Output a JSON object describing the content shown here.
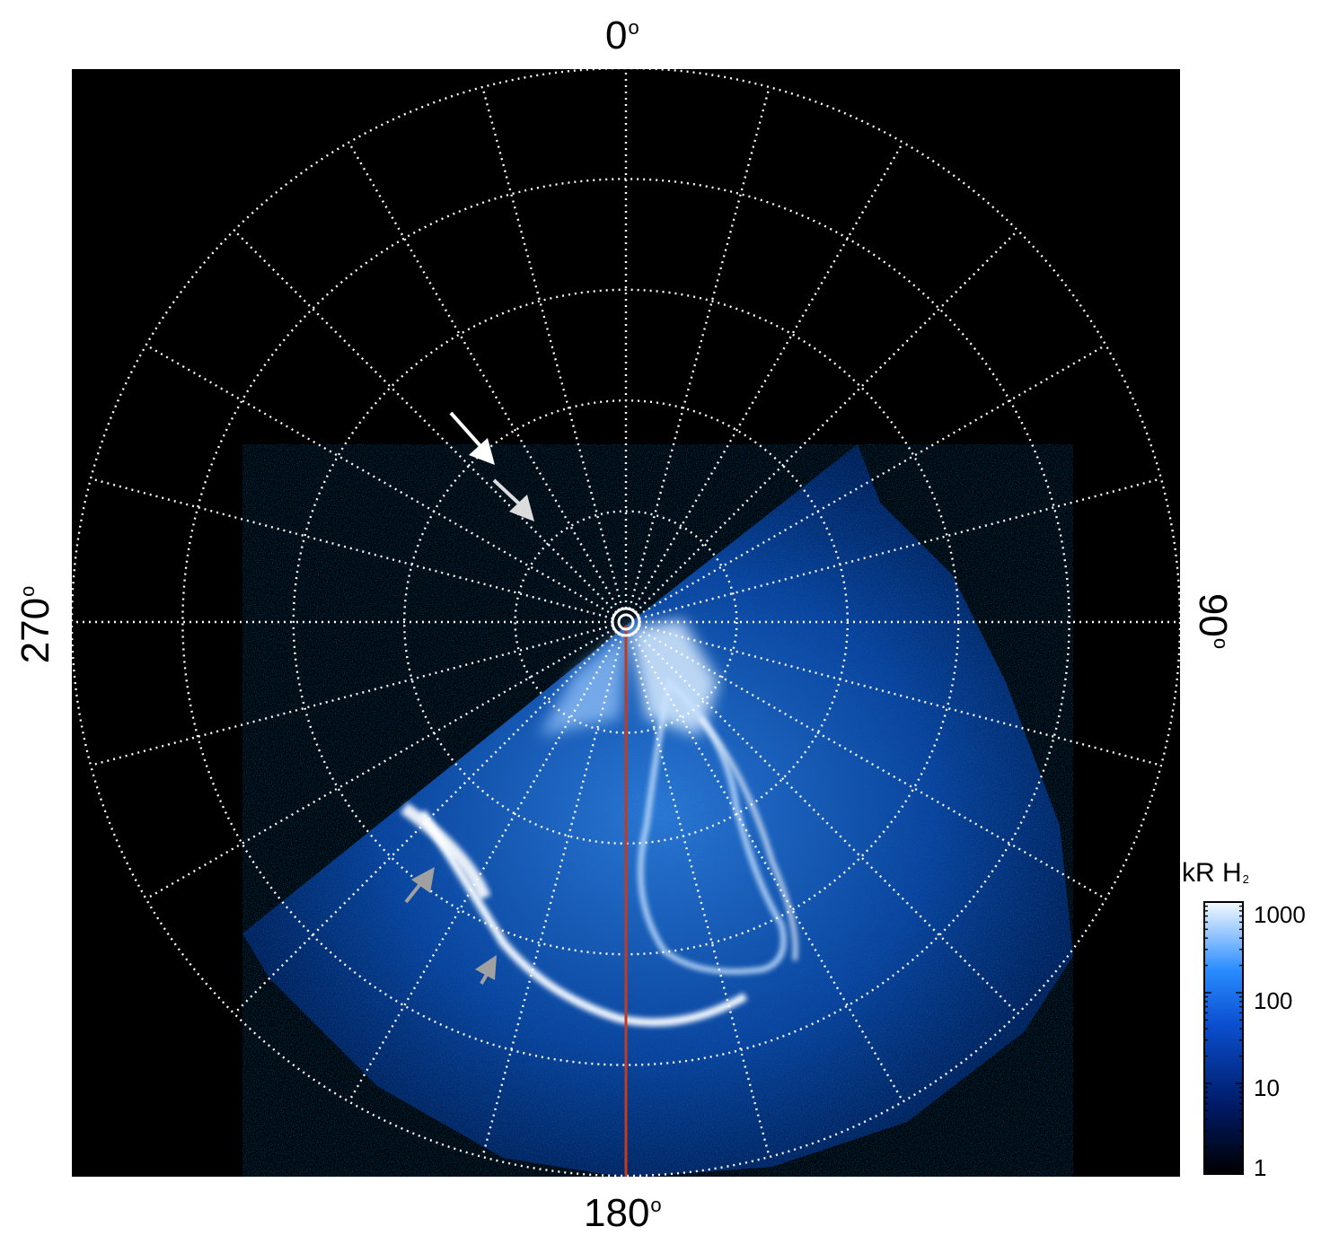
{
  "axis_labels": {
    "top": "0",
    "right": "90",
    "bottom": "180",
    "left": "270",
    "degree_symbol": "o"
  },
  "colorbar": {
    "title": "kR H",
    "title_subscript": "2",
    "ticks": [
      "1000",
      "100",
      "10",
      "1"
    ],
    "scale": "log"
  },
  "colors": {
    "background": "#000000",
    "grid": "#ffffff",
    "meridian_line": "#c8391a",
    "aurora_low": "#001a66",
    "aurora_mid": "#1f7fff",
    "aurora_high": "#e8f4ff",
    "arrow_white": "#ffffff",
    "arrow_gray": "#a0a0a0",
    "arrow_light": "#dcdcdc"
  },
  "grid": {
    "latitude_rings": 5,
    "longitude_spokes": 24
  }
}
